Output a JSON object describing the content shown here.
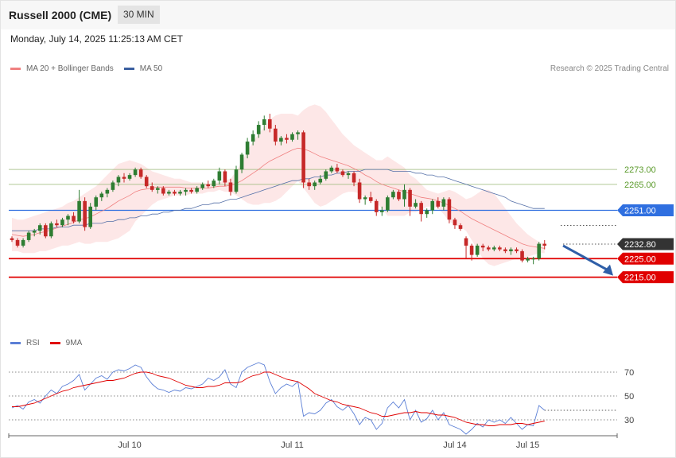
{
  "header": {
    "title": "Russell 2000 (CME)",
    "timeframe": "30 MIN",
    "datetime": "Monday, July 14, 2025 11:25:13 AM CET"
  },
  "legend_main": [
    {
      "label": "MA 20 + Bollinger Bands",
      "color": "#f08080"
    },
    {
      "label": "MA 50",
      "color": "#3b5fa0"
    }
  ],
  "legend_rsi": [
    {
      "label": "RSI",
      "color": "#5b7fd6"
    },
    {
      "label": "9MA",
      "color": "#e00000"
    }
  ],
  "credit": "Research © 2025 Trading Central",
  "chart_data": {
    "type": "candlestick",
    "y_axis": {
      "min": 2205,
      "max": 2318
    },
    "x_ticks": [
      {
        "label": "Jul 10",
        "index": 21
      },
      {
        "label": "Jul 11",
        "index": 50
      },
      {
        "label": "Jul 14",
        "index": 79
      },
      {
        "label": "Jul 15",
        "index": 92
      }
    ],
    "levels": [
      {
        "value": 2273.0,
        "label": "2273.00",
        "style": "resistance",
        "color": "#8fb26a"
      },
      {
        "value": 2265.0,
        "label": "2265.00",
        "style": "resistance",
        "color": "#8fb26a"
      },
      {
        "value": 2251.0,
        "label": "2251.00",
        "style": "pivot",
        "color": "#2f6fe0"
      },
      {
        "value": 2232.8,
        "label": "2232.80",
        "style": "last",
        "color": "#333333"
      },
      {
        "value": 2225.0,
        "label": "2225.00",
        "style": "support",
        "color": "#e00000"
      },
      {
        "value": 2215.0,
        "label": "2215.00",
        "style": "support",
        "color": "#e00000"
      }
    ],
    "candles": [
      [
        2236,
        2237,
        2234,
        2235
      ],
      [
        2235,
        2236,
        2231,
        2232
      ],
      [
        2232,
        2236,
        2231,
        2235
      ],
      [
        2235,
        2240,
        2234,
        2239
      ],
      [
        2239,
        2241,
        2237,
        2240
      ],
      [
        2240,
        2244,
        2238,
        2243
      ],
      [
        2243,
        2244,
        2236,
        2237
      ],
      [
        2237,
        2245,
        2236,
        2244
      ],
      [
        2244,
        2246,
        2242,
        2243
      ],
      [
        2243,
        2247,
        2242,
        2246
      ],
      [
        2246,
        2249,
        2243,
        2248
      ],
      [
        2248,
        2250,
        2244,
        2245
      ],
      [
        2245,
        2262,
        2244,
        2256
      ],
      [
        2256,
        2258,
        2240,
        2242
      ],
      [
        2242,
        2255,
        2241,
        2253
      ],
      [
        2253,
        2259,
        2251,
        2258
      ],
      [
        2258,
        2261,
        2256,
        2260
      ],
      [
        2260,
        2263,
        2258,
        2262
      ],
      [
        2262,
        2267,
        2261,
        2266
      ],
      [
        2266,
        2270,
        2264,
        2269
      ],
      [
        2269,
        2271,
        2266,
        2268
      ],
      [
        2268,
        2271,
        2267,
        2270
      ],
      [
        2270,
        2274,
        2269,
        2273
      ],
      [
        2273,
        2274,
        2268,
        2269
      ],
      [
        2269,
        2270,
        2263,
        2264
      ],
      [
        2264,
        2266,
        2261,
        2262
      ],
      [
        2262,
        2264,
        2260,
        2263
      ],
      [
        2263,
        2264,
        2259,
        2260
      ],
      [
        2260,
        2262,
        2259,
        2261
      ],
      [
        2261,
        2262,
        2259,
        2260
      ],
      [
        2260,
        2262,
        2259,
        2261
      ],
      [
        2261,
        2263,
        2259,
        2262
      ],
      [
        2262,
        2263,
        2260,
        2261
      ],
      [
        2261,
        2264,
        2260,
        2263
      ],
      [
        2263,
        2266,
        2262,
        2265
      ],
      [
        2265,
        2267,
        2263,
        2264
      ],
      [
        2264,
        2268,
        2263,
        2267
      ],
      [
        2267,
        2274,
        2265,
        2272
      ],
      [
        2272,
        2273,
        2264,
        2266
      ],
      [
        2266,
        2268,
        2259,
        2261
      ],
      [
        2261,
        2275,
        2260,
        2273
      ],
      [
        2273,
        2282,
        2271,
        2281
      ],
      [
        2281,
        2290,
        2279,
        2288
      ],
      [
        2288,
        2294,
        2286,
        2292
      ],
      [
        2292,
        2299,
        2290,
        2297
      ],
      [
        2297,
        2302,
        2294,
        2300
      ],
      [
        2300,
        2303,
        2293,
        2295
      ],
      [
        2295,
        2297,
        2286,
        2288
      ],
      [
        2288,
        2291,
        2286,
        2290
      ],
      [
        2290,
        2292,
        2287,
        2289
      ],
      [
        2289,
        2293,
        2288,
        2292
      ],
      [
        2292,
        2294,
        2289,
        2293
      ],
      [
        2293,
        2294,
        2263,
        2266
      ],
      [
        2266,
        2268,
        2262,
        2264
      ],
      [
        2264,
        2267,
        2262,
        2266
      ],
      [
        2266,
        2270,
        2265,
        2268
      ],
      [
        2268,
        2273,
        2267,
        2272
      ],
      [
        2272,
        2275,
        2271,
        2274
      ],
      [
        2274,
        2276,
        2271,
        2272
      ],
      [
        2272,
        2273,
        2269,
        2270
      ],
      [
        2270,
        2272,
        2268,
        2271
      ],
      [
        2271,
        2272,
        2264,
        2266
      ],
      [
        2266,
        2268,
        2255,
        2257
      ],
      [
        2257,
        2259,
        2254,
        2258
      ],
      [
        2258,
        2261,
        2255,
        2256
      ],
      [
        2256,
        2257,
        2248,
        2250
      ],
      [
        2250,
        2253,
        2248,
        2251
      ],
      [
        2251,
        2259,
        2250,
        2258
      ],
      [
        2258,
        2262,
        2257,
        2261
      ],
      [
        2261,
        2262,
        2256,
        2257
      ],
      [
        2257,
        2265,
        2253,
        2262
      ],
      [
        2262,
        2263,
        2248,
        2253
      ],
      [
        2253,
        2257,
        2252,
        2255
      ],
      [
        2255,
        2256,
        2245,
        2249
      ],
      [
        2249,
        2252,
        2247,
        2251
      ],
      [
        2251,
        2257,
        2249,
        2256
      ],
      [
        2256,
        2258,
        2252,
        2253
      ],
      [
        2253,
        2258,
        2251,
        2257
      ],
      [
        2257,
        2258,
        2244,
        2246
      ],
      [
        2246,
        2247,
        2241,
        2243
      ],
      [
        2243,
        2244,
        2240,
        2241
      ],
      [
        2236,
        2237,
        2225,
        2232
      ],
      [
        2232,
        2233,
        2224,
        2227
      ],
      [
        2227,
        2233,
        2226,
        2232
      ],
      [
        2232,
        2233,
        2229,
        2231
      ],
      [
        2231,
        2232,
        2229,
        2230
      ],
      [
        2230,
        2232,
        2229,
        2231
      ],
      [
        2231,
        2232,
        2229,
        2230
      ],
      [
        2230,
        2231,
        2228,
        2229
      ],
      [
        2229,
        2231,
        2227,
        2230
      ],
      [
        2230,
        2231,
        2228,
        2229
      ],
      [
        2229,
        2230,
        2223,
        2224
      ],
      [
        2224,
        2226,
        2223,
        2225
      ],
      [
        2225,
        2226,
        2222,
        2225
      ],
      [
        2225,
        2234,
        2224,
        2233
      ],
      [
        2233,
        2235,
        2230,
        2232
      ]
    ],
    "ma20": [
      2238,
      2237.5,
      2237,
      2237.5,
      2238,
      2239,
      2239.5,
      2240.5,
      2241.5,
      2242.5,
      2243.5,
      2244.5,
      2246,
      2246.5,
      2247.5,
      2249,
      2250.5,
      2252,
      2254,
      2256,
      2257.5,
      2259,
      2261,
      2262,
      2262.5,
      2263,
      2263.5,
      2263.5,
      2263.5,
      2263.5,
      2263.5,
      2263,
      2263,
      2263,
      2263,
      2263,
      2263.5,
      2264,
      2264,
      2264.5,
      2265.5,
      2267,
      2269,
      2271,
      2273,
      2275.5,
      2277.5,
      2279,
      2280.5,
      2282,
      2283.5,
      2284.5,
      2284,
      2283,
      2281.5,
      2280,
      2279,
      2278,
      2277,
      2276,
      2275,
      2273.5,
      2272,
      2270,
      2268.5,
      2266.5,
      2265,
      2264,
      2263,
      2262,
      2261,
      2260,
      2259,
      2258,
      2257.5,
      2257,
      2256,
      2255,
      2253.5,
      2252,
      2250.5,
      2248.5,
      2246.5,
      2245,
      2243.5,
      2242,
      2240.5,
      2239,
      2237.5,
      2236,
      2234.5,
      2233,
      2232,
      2231.5,
      2231,
      2230.5
    ],
    "bb_upper": [
      2247,
      2246,
      2246,
      2247,
      2248,
      2249,
      2250,
      2251,
      2252,
      2253,
      2255,
      2256,
      2258,
      2260,
      2262,
      2264,
      2267,
      2270,
      2273,
      2276,
      2277,
      2278,
      2277,
      2276,
      2274,
      2272,
      2271,
      2270,
      2269,
      2268,
      2268,
      2267,
      2266,
      2266,
      2266,
      2265,
      2266,
      2266,
      2267,
      2268,
      2272,
      2277,
      2283,
      2288,
      2292,
      2296,
      2300,
      2302,
      2303,
      2303,
      2303,
      2302,
      2305,
      2307,
      2308,
      2307,
      2304,
      2300,
      2296,
      2292,
      2289,
      2286,
      2284,
      2282,
      2280,
      2278,
      2278,
      2280,
      2278,
      2276,
      2274,
      2270,
      2268,
      2265,
      2262,
      2261,
      2260,
      2261,
      2262,
      2261,
      2259,
      2257,
      2258,
      2260,
      2262,
      2262,
      2260,
      2256,
      2252,
      2248,
      2244,
      2241,
      2238,
      2236,
      2234,
      2233
    ],
    "bb_lower": [
      2229,
      2229,
      2228,
      2228,
      2228,
      2229,
      2229,
      2230,
      2231,
      2232,
      2232,
      2233,
      2234,
      2233,
      2233,
      2234,
      2234,
      2234,
      2235,
      2236,
      2238,
      2240,
      2245,
      2248,
      2251,
      2254,
      2256,
      2257,
      2258,
      2259,
      2259,
      2259,
      2260,
      2260,
      2260,
      2261,
      2261,
      2262,
      2261,
      2261,
      2259,
      2257,
      2255,
      2254,
      2254,
      2255,
      2255,
      2256,
      2258,
      2261,
      2264,
      2267,
      2263,
      2259,
      2255,
      2253,
      2254,
      2256,
      2258,
      2260,
      2261,
      2261,
      2260,
      2258,
      2257,
      2255,
      2252,
      2248,
      2248,
      2248,
      2248,
      2250,
      2250,
      2251,
      2253,
      2253,
      2252,
      2249,
      2245,
      2243,
      2242,
      2240,
      2235,
      2230,
      2225,
      2222,
      2221,
      2222,
      2223,
      2224,
      2225,
      2225,
      2226,
      2227,
      2228,
      2228
    ],
    "ma50": [
      2240,
      2240,
      2240,
      2240,
      2240,
      2241,
      2241,
      2241,
      2242,
      2242,
      2242,
      2243,
      2243,
      2243,
      2244,
      2244,
      2244,
      2245,
      2245,
      2246,
      2246,
      2247,
      2247,
      2248,
      2248,
      2249,
      2249,
      2250,
      2250,
      2251,
      2251,
      2252,
      2252,
      2253,
      2254,
      2254,
      2255,
      2255,
      2256,
      2257,
      2257,
      2258,
      2259,
      2260,
      2261,
      2262,
      2263,
      2264,
      2265,
      2266,
      2267,
      2267,
      2268,
      2268,
      2269,
      2269,
      2270,
      2270,
      2271,
      2271,
      2272,
      2272,
      2272,
      2273,
      2273,
      2273,
      2273,
      2273,
      2272,
      2272,
      2272,
      2272,
      2271,
      2271,
      2270,
      2270,
      2269,
      2269,
      2268,
      2267,
      2266,
      2265,
      2264,
      2263,
      2262,
      2261,
      2260,
      2259,
      2258,
      2256,
      2255,
      2254,
      2253,
      2252,
      2252,
      2252
    ],
    "rsi": {
      "levels": [
        70,
        50,
        30
      ],
      "range": [
        18,
        82
      ],
      "rsi": [
        40,
        42,
        39,
        45,
        47,
        44,
        50,
        55,
        52,
        58,
        60,
        63,
        68,
        55,
        60,
        65,
        67,
        64,
        70,
        72,
        71,
        73,
        76,
        74,
        66,
        60,
        56,
        55,
        53,
        55,
        54,
        57,
        56,
        58,
        60,
        65,
        63,
        66,
        72,
        60,
        57,
        70,
        74,
        76,
        78,
        76,
        62,
        52,
        57,
        60,
        58,
        62,
        33,
        36,
        35,
        38,
        44,
        47,
        41,
        38,
        42,
        35,
        26,
        32,
        30,
        22,
        27,
        40,
        45,
        40,
        47,
        30,
        38,
        28,
        31,
        38,
        30,
        36,
        26,
        24,
        22,
        18,
        22,
        27,
        24,
        30,
        28,
        30,
        27,
        32,
        27,
        22,
        26,
        25,
        42,
        38
      ],
      "ma9": [
        41,
        41,
        42,
        43,
        44,
        46,
        48,
        50,
        52,
        54,
        55,
        57,
        58,
        59,
        60,
        61,
        62,
        63,
        63,
        64,
        65,
        67,
        69,
        70,
        70,
        69,
        67,
        66,
        65,
        63,
        61,
        59,
        58,
        57,
        57,
        58,
        58,
        59,
        61,
        61,
        61,
        62,
        65,
        67,
        68,
        70,
        70,
        68,
        66,
        64,
        63,
        62,
        59,
        56,
        52,
        50,
        48,
        46,
        45,
        43,
        42,
        41,
        40,
        38,
        36,
        35,
        33,
        33,
        34,
        35,
        36,
        36,
        37,
        36,
        36,
        35,
        34,
        34,
        33,
        32,
        30,
        28,
        27,
        26,
        26,
        25,
        25,
        26,
        26,
        26,
        27,
        27,
        26,
        27,
        28,
        29
      ]
    }
  }
}
